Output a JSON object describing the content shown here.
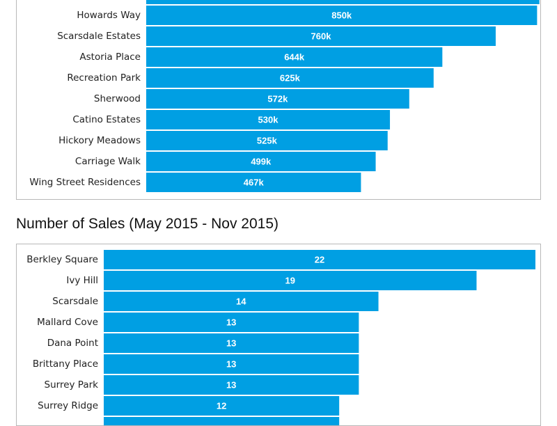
{
  "chart_data": [
    {
      "type": "bar",
      "orientation": "horizontal",
      "title": "",
      "categories": [
        "",
        "Howards Way",
        "Scarsdale Estates",
        "Astoria Place",
        "Recreation Park",
        "Sherwood",
        "Catino Estates",
        "Hickory Meadows",
        "Carriage Walk",
        "Wing Street Residences"
      ],
      "values": [
        855,
        850,
        760,
        644,
        625,
        572,
        530,
        525,
        499,
        467
      ],
      "value_labels": [
        "",
        "850k",
        "760k",
        "644k",
        "625k",
        "572k",
        "530k",
        "525k",
        "499k",
        "467k"
      ],
      "xlim": [
        0,
        860
      ],
      "bar_color": "#009fe3",
      "grid": false,
      "legend": false
    },
    {
      "type": "bar",
      "orientation": "horizontal",
      "title": "Number of Sales (May 2015 - Nov 2015)",
      "categories": [
        "Berkley Square",
        "Ivy Hill",
        "Scarsdale",
        "Mallard Cove",
        "Dana Point",
        "Brittany Place",
        "Surrey Park",
        "Surrey Ridge",
        ""
      ],
      "values": [
        22,
        19,
        14,
        13,
        13,
        13,
        13,
        12,
        12
      ],
      "value_labels": [
        "22",
        "19",
        "14",
        "13",
        "13",
        "13",
        "13",
        "12",
        ""
      ],
      "xlim": [
        0,
        22
      ],
      "bar_color": "#009fe3",
      "grid": false,
      "legend": false
    }
  ]
}
